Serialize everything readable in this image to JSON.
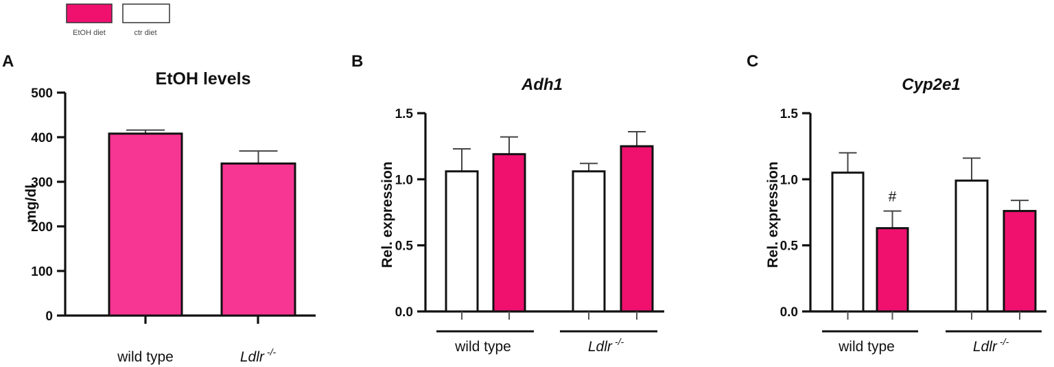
{
  "legend": {
    "items": [
      {
        "label": "EtOH diet",
        "color": "#f0116f"
      },
      {
        "label": "ctr diet",
        "color": "#ffffff"
      }
    ]
  },
  "colors": {
    "etoh": "#f0116f",
    "etoh_panel_a": "#f73592",
    "ctr": "#ffffff",
    "axis": "#111111"
  },
  "chart_data": [
    {
      "panel": "A",
      "type": "bar",
      "title": "EtOH levels",
      "ylabel": "mg/dl",
      "ylim": [
        0,
        500
      ],
      "yticks": [
        "0",
        "100",
        "200",
        "300",
        "400",
        "500"
      ],
      "categories": [
        "wild type",
        "Ldlr -/-"
      ],
      "series": [
        {
          "diet": "EtOH diet",
          "values": [
            408,
            341
          ],
          "errors": [
            8,
            28
          ]
        }
      ]
    },
    {
      "panel": "B",
      "type": "bar",
      "title": "Adh1",
      "ylabel": "Rel. expression",
      "ylim": [
        0,
        1.5
      ],
      "yticks": [
        "0.0",
        "0.5",
        "1.0",
        "1.5"
      ],
      "categories": [
        "wild type",
        "Ldlr -/-"
      ],
      "series": [
        {
          "diet": "ctr diet",
          "values": [
            1.06,
            1.06
          ],
          "errors": [
            0.17,
            0.06
          ]
        },
        {
          "diet": "EtOH diet",
          "values": [
            1.19,
            1.25
          ],
          "errors": [
            0.13,
            0.11
          ]
        }
      ]
    },
    {
      "panel": "C",
      "type": "bar",
      "title": "Cyp2e1",
      "ylabel": "Rel. expression",
      "ylim": [
        0,
        1.5
      ],
      "yticks": [
        "0.0",
        "0.5",
        "1.0",
        "1.5"
      ],
      "categories": [
        "wild type",
        "Ldlr -/-"
      ],
      "series": [
        {
          "diet": "ctr diet",
          "values": [
            1.05,
            0.99
          ],
          "errors": [
            0.15,
            0.17
          ]
        },
        {
          "diet": "EtOH diet",
          "values": [
            0.63,
            0.76
          ],
          "errors": [
            0.13,
            0.08
          ]
        }
      ],
      "annotations": [
        {
          "text": "#",
          "category": "wild type",
          "series": "EtOH diet"
        }
      ]
    }
  ]
}
